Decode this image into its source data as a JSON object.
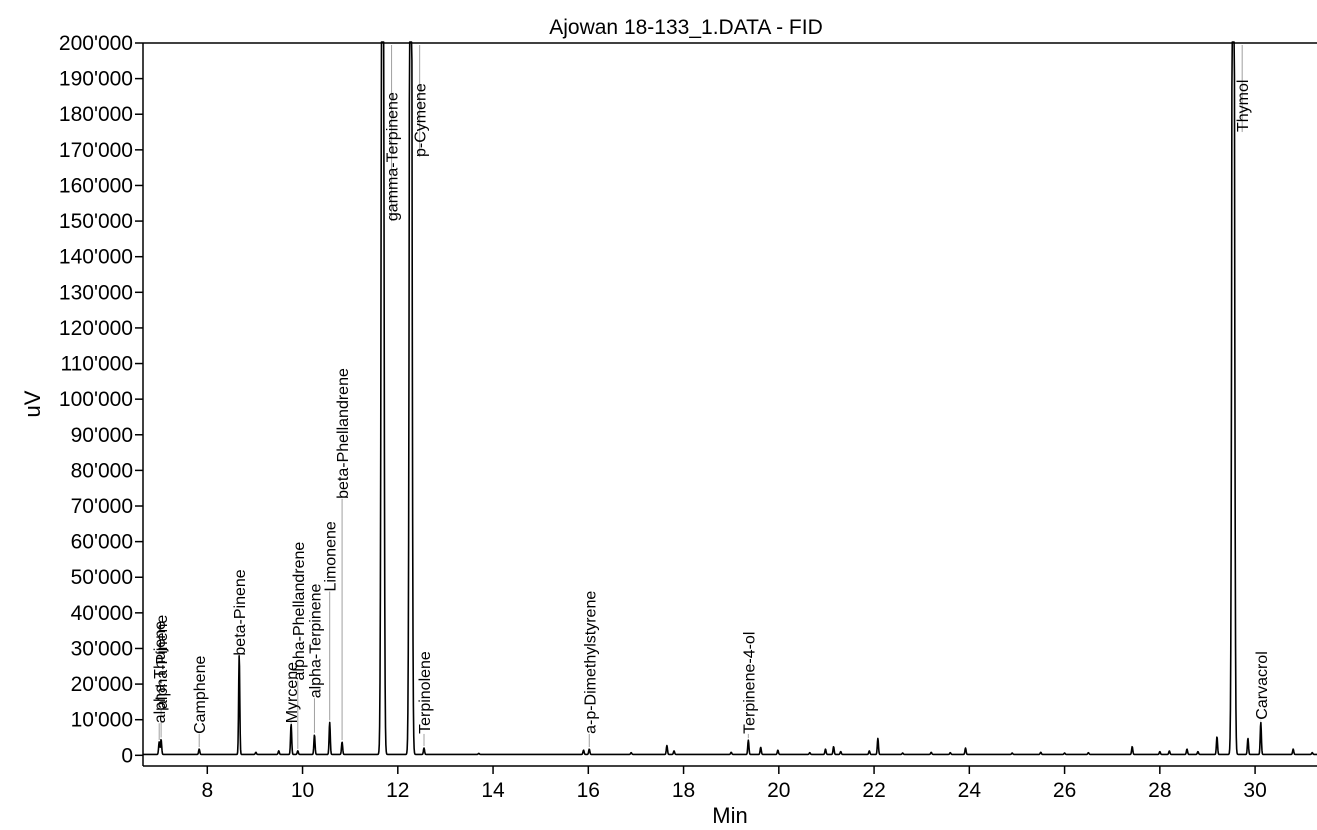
{
  "chart_data": {
    "type": "line",
    "title": "Ajowan 18-133_1.DATA - FID",
    "xlabel": "Min",
    "ylabel": "uV",
    "xlim": [
      6.65,
      31.3
    ],
    "ylim": [
      -3000,
      200000
    ],
    "x_ticks": [
      8,
      10,
      12,
      14,
      16,
      18,
      20,
      22,
      24,
      26,
      28,
      30
    ],
    "y_ticks": [
      {
        "value": 0,
        "label": "0"
      },
      {
        "value": 10000,
        "label": "10'000"
      },
      {
        "value": 20000,
        "label": "20'000"
      },
      {
        "value": 30000,
        "label": "30'000"
      },
      {
        "value": 40000,
        "label": "40'000"
      },
      {
        "value": 50000,
        "label": "50'000"
      },
      {
        "value": 60000,
        "label": "60'000"
      },
      {
        "value": 70000,
        "label": "70'000"
      },
      {
        "value": 80000,
        "label": "80'000"
      },
      {
        "value": 90000,
        "label": "90'000"
      },
      {
        "value": 100000,
        "label": "100'000"
      },
      {
        "value": 110000,
        "label": "110'000"
      },
      {
        "value": 120000,
        "label": "120'000"
      },
      {
        "value": 130000,
        "label": "130'000"
      },
      {
        "value": 140000,
        "label": "140'000"
      },
      {
        "value": 150000,
        "label": "150'000"
      },
      {
        "value": 160000,
        "label": "160'000"
      },
      {
        "value": 170000,
        "label": "170'000"
      },
      {
        "value": 180000,
        "label": "180'000"
      },
      {
        "value": 190000,
        "label": "190'000"
      },
      {
        "value": 200000,
        "label": "200'000"
      }
    ],
    "grid": false,
    "line_color": "#000000",
    "marker_color": "#a0a0a0",
    "peaks": [
      {
        "t": 6.99,
        "h": 3500,
        "label": "alpha-Thujene",
        "label_y": 9000
      },
      {
        "t": 7.03,
        "h": 4200,
        "label": "alpha-Pinene",
        "label_y": 13000
      },
      {
        "t": 7.83,
        "h": 1500,
        "label": "Camphene",
        "label_y": 6000
      },
      {
        "t": 8.67,
        "h": 28000,
        "label": "beta-Pinene",
        "label_y": 28000
      },
      {
        "t": 9.02,
        "h": 600
      },
      {
        "t": 9.5,
        "h": 1000
      },
      {
        "t": 9.76,
        "h": 8500,
        "label": "Myrcene",
        "label_y": 9000
      },
      {
        "t": 9.9,
        "h": 1000,
        "label": "alpha-Phellandrene",
        "label_y": 21000
      },
      {
        "t": 10.25,
        "h": 5500,
        "label": "alpha-Terpinene",
        "label_y": 16000
      },
      {
        "t": 10.57,
        "h": 9000,
        "label": "Limonene",
        "label_y": 46000
      },
      {
        "t": 10.83,
        "h": 3500,
        "label": "beta-Phellandrene",
        "label_y": 72000
      },
      {
        "t": 11.68,
        "h": 400000,
        "label": "gamma-Terpinene",
        "label_y": 150000
      },
      {
        "t": 12.27,
        "h": 400000,
        "label": "p-Cymene",
        "label_y": 168000
      },
      {
        "t": 12.55,
        "h": 1800,
        "label": "Terpinolene",
        "label_y": 6000
      },
      {
        "t": 13.7,
        "h": 300
      },
      {
        "t": 15.9,
        "h": 1200
      },
      {
        "t": 16.02,
        "h": 1500,
        "label": "a-p-Dimethylstyrene",
        "label_y": 6000
      },
      {
        "t": 16.9,
        "h": 500
      },
      {
        "t": 17.65,
        "h": 2500
      },
      {
        "t": 17.8,
        "h": 1000
      },
      {
        "t": 19.0,
        "h": 600
      },
      {
        "t": 19.36,
        "h": 4000,
        "label": "Terpinene-4-ol",
        "label_y": 6000
      },
      {
        "t": 19.62,
        "h": 2000
      },
      {
        "t": 19.98,
        "h": 1200
      },
      {
        "t": 20.65,
        "h": 500
      },
      {
        "t": 20.98,
        "h": 1500
      },
      {
        "t": 21.15,
        "h": 2200
      },
      {
        "t": 21.3,
        "h": 800
      },
      {
        "t": 21.9,
        "h": 1000
      },
      {
        "t": 22.08,
        "h": 4500
      },
      {
        "t": 22.6,
        "h": 400
      },
      {
        "t": 23.2,
        "h": 600
      },
      {
        "t": 23.6,
        "h": 500
      },
      {
        "t": 23.92,
        "h": 1800
      },
      {
        "t": 24.9,
        "h": 400
      },
      {
        "t": 25.5,
        "h": 600
      },
      {
        "t": 26.0,
        "h": 400
      },
      {
        "t": 26.5,
        "h": 500
      },
      {
        "t": 27.42,
        "h": 2200
      },
      {
        "t": 28.0,
        "h": 800
      },
      {
        "t": 28.2,
        "h": 1000
      },
      {
        "t": 28.57,
        "h": 1500
      },
      {
        "t": 28.8,
        "h": 800
      },
      {
        "t": 29.2,
        "h": 5000
      },
      {
        "t": 29.54,
        "h": 400000,
        "label": "Thymol",
        "label_y": 175000
      },
      {
        "t": 29.85,
        "h": 4500
      },
      {
        "t": 30.12,
        "h": 9000,
        "label": "Carvacrol",
        "label_y": 10000
      },
      {
        "t": 30.8,
        "h": 1500
      },
      {
        "t": 31.2,
        "h": 500
      }
    ]
  }
}
